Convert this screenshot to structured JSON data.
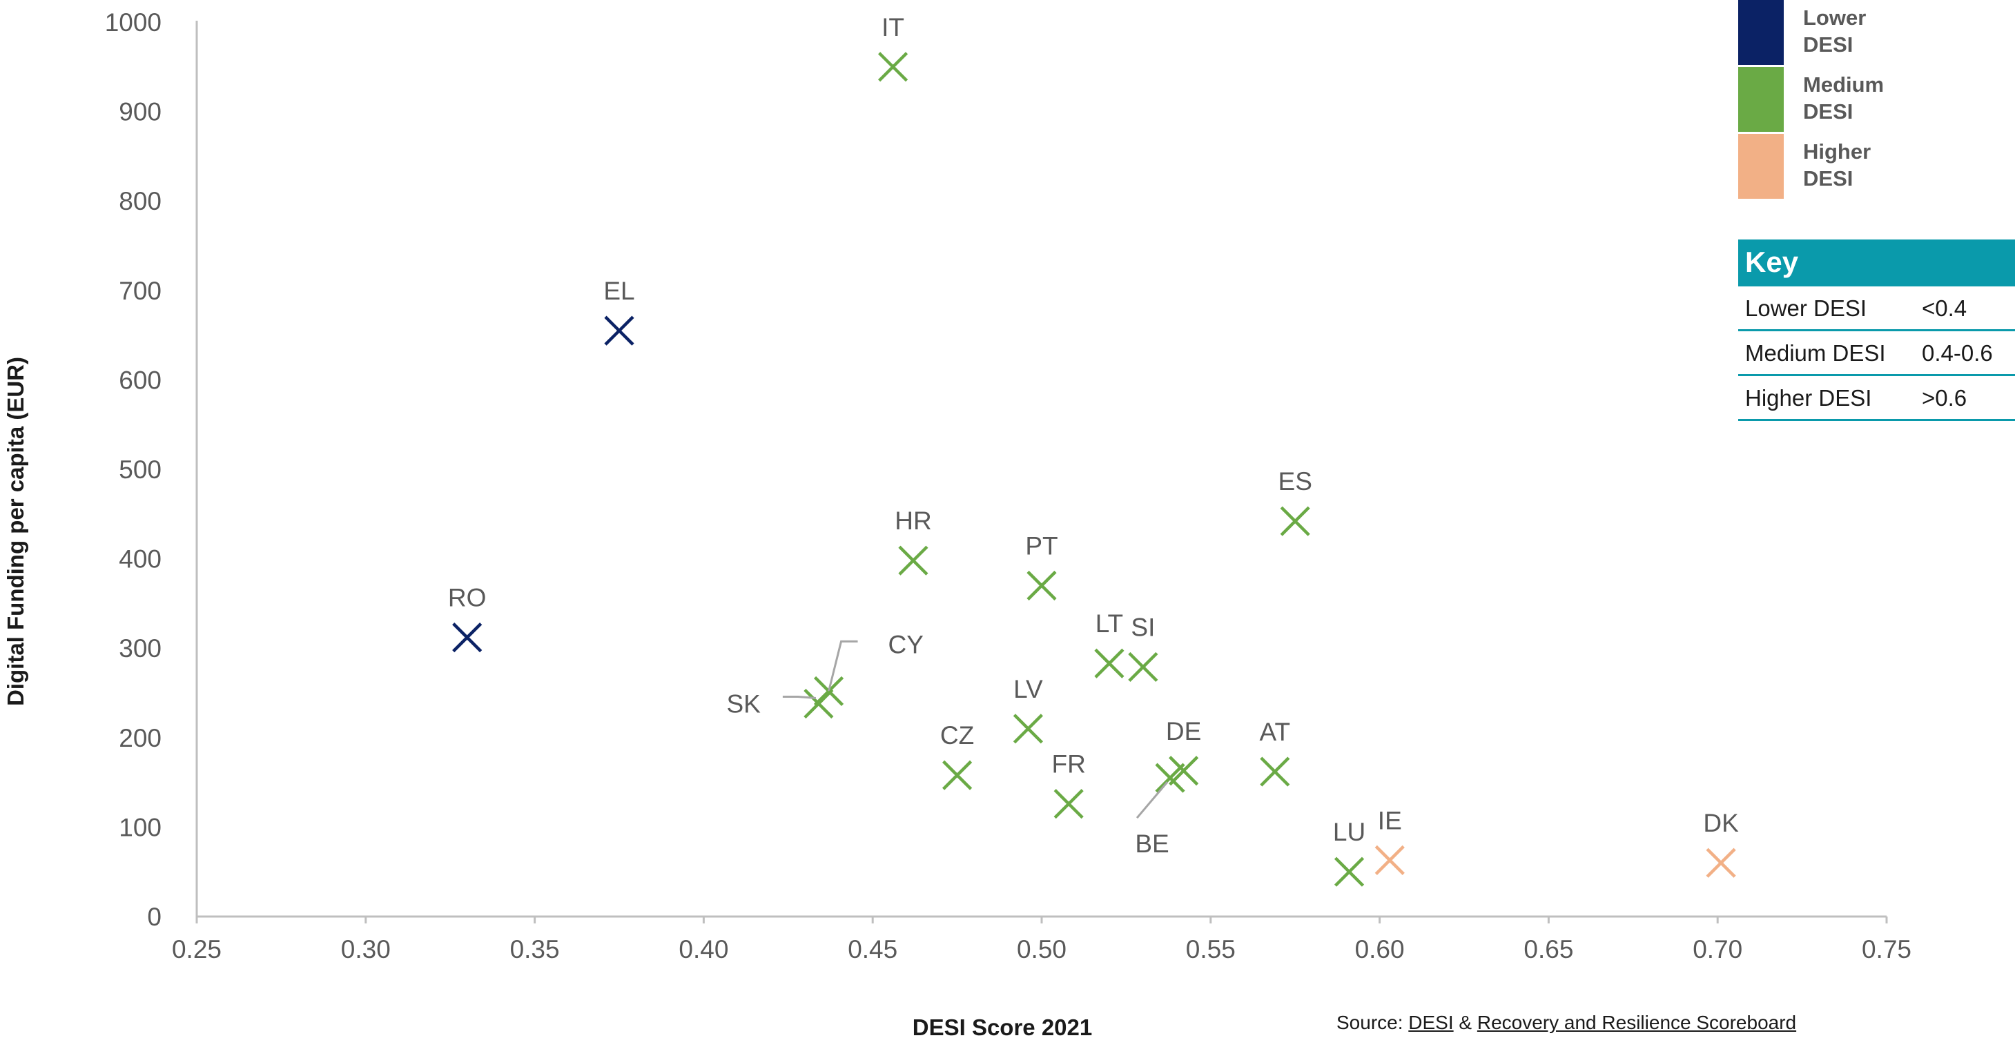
{
  "chart_data": {
    "type": "scatter",
    "xlabel": "DESI Score 2021",
    "ylabel": "Digital Funding per capita (EUR)",
    "xlim": [
      0.25,
      0.75
    ],
    "ylim": [
      0,
      1000
    ],
    "x_ticks": [
      "0.25",
      "0.30",
      "0.35",
      "0.40",
      "0.45",
      "0.50",
      "0.55",
      "0.60",
      "0.65",
      "0.70",
      "0.75"
    ],
    "y_ticks": [
      "0",
      "100",
      "200",
      "300",
      "400",
      "500",
      "600",
      "700",
      "800",
      "900",
      "1000"
    ],
    "grid": false,
    "marker": "x",
    "groups": [
      {
        "name": "Lower DESI",
        "color": "#0b2265"
      },
      {
        "name": "Medium DESI",
        "color": "#6aaa45"
      },
      {
        "name": "Higher DESI",
        "color": "#f2b086"
      }
    ],
    "points": [
      {
        "label": "RO",
        "x": 0.33,
        "y": 312,
        "group": "Lower DESI"
      },
      {
        "label": "EL",
        "x": 0.375,
        "y": 655,
        "group": "Lower DESI"
      },
      {
        "label": "IT",
        "x": 0.456,
        "y": 950,
        "group": "Medium DESI"
      },
      {
        "label": "HR",
        "x": 0.462,
        "y": 398,
        "group": "Medium DESI"
      },
      {
        "label": "CY",
        "x": 0.437,
        "y": 252,
        "group": "Medium DESI"
      },
      {
        "label": "SK",
        "x": 0.434,
        "y": 238,
        "group": "Medium DESI"
      },
      {
        "label": "CZ",
        "x": 0.475,
        "y": 158,
        "group": "Medium DESI"
      },
      {
        "label": "PT",
        "x": 0.5,
        "y": 370,
        "group": "Medium DESI"
      },
      {
        "label": "LV",
        "x": 0.496,
        "y": 210,
        "group": "Medium DESI"
      },
      {
        "label": "FR",
        "x": 0.508,
        "y": 126,
        "group": "Medium DESI"
      },
      {
        "label": "LT",
        "x": 0.52,
        "y": 283,
        "group": "Medium DESI"
      },
      {
        "label": "SI",
        "x": 0.53,
        "y": 279,
        "group": "Medium DESI"
      },
      {
        "label": "BE",
        "x": 0.538,
        "y": 155,
        "group": "Medium DESI"
      },
      {
        "label": "DE",
        "x": 0.542,
        "y": 163,
        "group": "Medium DESI"
      },
      {
        "label": "AT",
        "x": 0.569,
        "y": 162,
        "group": "Medium DESI"
      },
      {
        "label": "ES",
        "x": 0.575,
        "y": 442,
        "group": "Medium DESI"
      },
      {
        "label": "LU",
        "x": 0.591,
        "y": 50,
        "group": "Medium DESI"
      },
      {
        "label": "IE",
        "x": 0.603,
        "y": 63,
        "group": "Higher DESI"
      },
      {
        "label": "DK",
        "x": 0.701,
        "y": 60,
        "group": "Higher DESI"
      }
    ]
  },
  "legend": {
    "items": [
      {
        "line1": "Lower",
        "line2": "DESI",
        "color": "#0b2265"
      },
      {
        "line1": "Medium",
        "line2": "DESI",
        "color": "#6aaa45"
      },
      {
        "line1": "Higher",
        "line2": "DESI",
        "color": "#f2b086"
      }
    ]
  },
  "key": {
    "title": "Key",
    "rows": [
      {
        "name": "Lower DESI",
        "range": "<0.4"
      },
      {
        "name": "Medium DESI",
        "range": "0.4-0.6"
      },
      {
        "name": "Higher DESI",
        "range": ">0.6"
      }
    ]
  },
  "source": {
    "prefix": "Source: ",
    "link1": "DESI",
    "sep": " & ",
    "link2": "Recovery and Resilience Scoreboard"
  }
}
